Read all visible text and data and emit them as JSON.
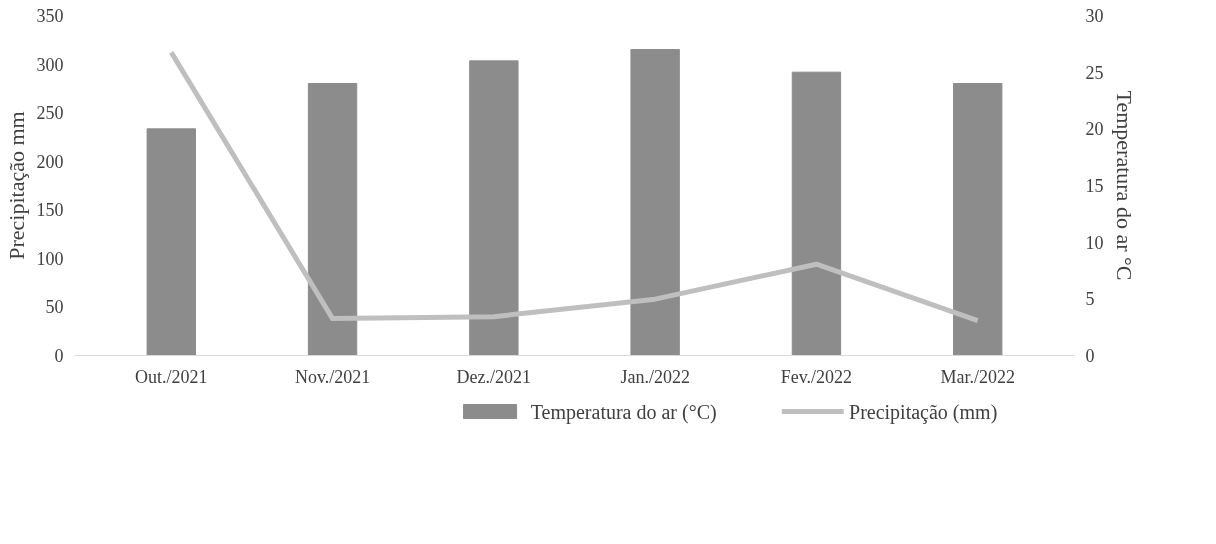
{
  "chart_data": {
    "type": "bar",
    "categories": [
      "Out./2021",
      "Nov./2021",
      "Dez./2021",
      "Jan./2022",
      "Fev./2022",
      "Mar./2022"
    ],
    "ylabel": "Precipitação mm",
    "y2label": "Temperatura do ar °C",
    "ylim": [
      0,
      350
    ],
    "yticks": [
      0,
      50,
      100,
      150,
      200,
      250,
      300,
      350
    ],
    "y2lim": [
      0,
      30
    ],
    "y2ticks": [
      0,
      5,
      10,
      15,
      20,
      25,
      30
    ],
    "series": [
      {
        "name": "Temperatura  do ar (°C)",
        "axis": "y2",
        "color": "#8c8c8c",
        "values": [
          20,
          24,
          26,
          27,
          25,
          24
        ]
      },
      {
        "name": "Precipitação (mm)",
        "type": "line",
        "color": "#bfbfbf",
        "values": [
          312,
          38,
          40,
          58,
          94,
          36
        ]
      }
    ],
    "legend": "bottom",
    "grid": false
  }
}
